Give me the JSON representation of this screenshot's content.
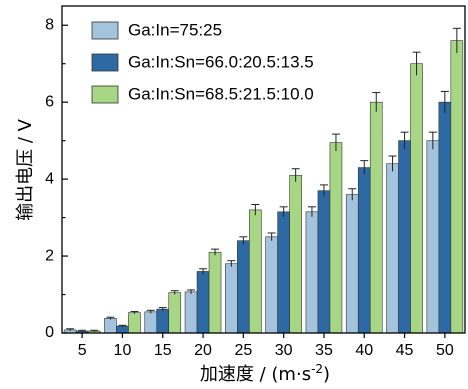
{
  "chart_data": {
    "type": "bar",
    "title": "",
    "xlabel": "加速度 / (m·s",
    "xlabel_sup": "-2",
    "xlabel_close": ")",
    "ylabel": "输出电压 / V",
    "ylim": [
      0,
      8.5
    ],
    "yticks": [
      "0",
      "2",
      "4",
      "6",
      "8"
    ],
    "categories": [
      "5",
      "10",
      "15",
      "20",
      "25",
      "30",
      "35",
      "40",
      "45",
      "50"
    ],
    "legend_position": "top-left",
    "grid": false,
    "series": [
      {
        "name": "Ga:In=75:25",
        "color": "#a4c3dd",
        "values": [
          0.08,
          0.38,
          0.55,
          1.07,
          1.8,
          2.5,
          3.15,
          3.6,
          4.4,
          5.0
        ],
        "errors": [
          0.03,
          0.03,
          0.04,
          0.05,
          0.08,
          0.1,
          0.13,
          0.15,
          0.2,
          0.22
        ]
      },
      {
        "name": "Ga:In:Sn=66.0:20.5:13.5",
        "color": "#2d6aa3",
        "values": [
          0.05,
          0.18,
          0.62,
          1.6,
          2.4,
          3.15,
          3.7,
          4.3,
          5.0,
          6.0
        ],
        "errors": [
          0.02,
          0.02,
          0.04,
          0.07,
          0.1,
          0.13,
          0.15,
          0.18,
          0.22,
          0.28
        ]
      },
      {
        "name": "Ga:In:Sn=68.5:21.5:10.0",
        "color": "#a7d685",
        "values": [
          0.05,
          0.53,
          1.05,
          2.1,
          3.2,
          4.1,
          4.95,
          6.0,
          7.0,
          7.6
        ],
        "errors": [
          0.02,
          0.03,
          0.05,
          0.08,
          0.14,
          0.17,
          0.22,
          0.25,
          0.3,
          0.32
        ]
      }
    ]
  }
}
